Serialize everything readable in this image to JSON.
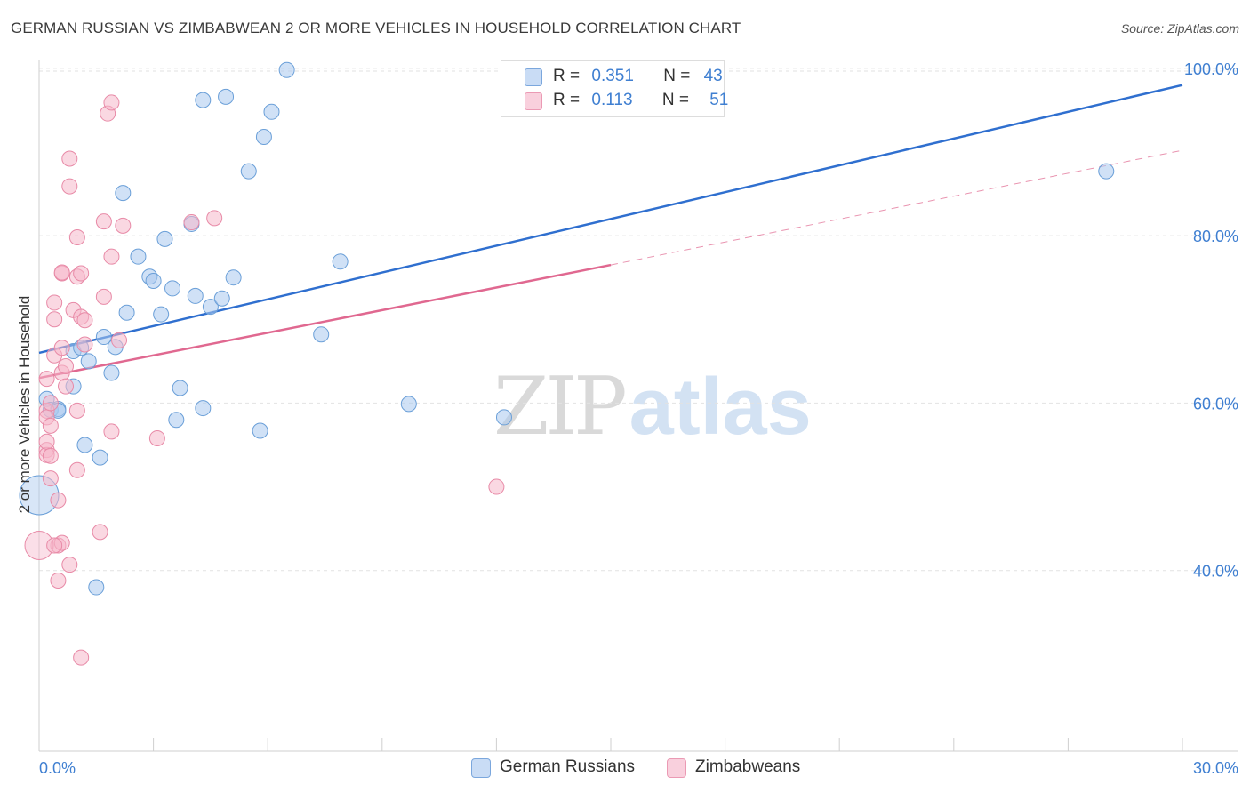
{
  "title": "GERMAN RUSSIAN VS ZIMBABWEAN 2 OR MORE VEHICLES IN HOUSEHOLD CORRELATION CHART",
  "source": "Source: ZipAtlas.com",
  "watermark": {
    "zip": "ZIP",
    "atlas": "atlas"
  },
  "legend": {
    "rows": [
      {
        "r_label": "R =",
        "r_value": "0.351",
        "n_label": "N =",
        "n_value": "43",
        "color": "#a9c8ee"
      },
      {
        "r_label": "R =",
        "r_value": "0.113",
        "n_label": "N =",
        "n_value": "51",
        "color": "#f6b8cb"
      }
    ]
  },
  "bottom_legend": [
    {
      "label": "German Russians",
      "color": "#a9c8ee"
    },
    {
      "label": "Zimbabweans",
      "color": "#f6b8cb"
    }
  ],
  "chart_data": {
    "type": "scatter",
    "xlabel": "",
    "ylabel": "2 or more Vehicles in Household",
    "xlim": [
      0,
      30
    ],
    "ylim": [
      20,
      102
    ],
    "x_tick_labels": [
      "0.0%",
      "30.0%"
    ],
    "y_ticks": [
      40,
      60,
      80,
      100
    ],
    "y_tick_labels": [
      "40.0%",
      "60.0%",
      "80.0%",
      "100.0%"
    ],
    "grid": true,
    "series": [
      {
        "name": "German Russians",
        "color": "#a9c8ee",
        "stroke": "#6a9fd8",
        "trend_color": "#2f6fcf",
        "trend": {
          "x0": 0,
          "y0": 66,
          "x1": 30,
          "y1": 98,
          "dashed_extension": false
        },
        "points": [
          [
            0.2,
            60.5
          ],
          [
            0.3,
            59.2
          ],
          [
            0.5,
            59.3
          ],
          [
            0.5,
            59.1
          ],
          [
            0.9,
            62
          ],
          [
            0.9,
            66.2
          ],
          [
            1.2,
            55
          ],
          [
            1.3,
            65
          ],
          [
            1.1,
            66.6
          ],
          [
            1.6,
            53.5
          ],
          [
            1.9,
            63.6
          ],
          [
            1.7,
            67.9
          ],
          [
            2.0,
            66.7
          ],
          [
            2.2,
            85.1
          ],
          [
            2.3,
            70.8
          ],
          [
            2.6,
            77.5
          ],
          [
            2.9,
            75.1
          ],
          [
            3.0,
            74.6
          ],
          [
            3.2,
            70.6
          ],
          [
            3.3,
            79.6
          ],
          [
            3.5,
            73.7
          ],
          [
            3.6,
            58
          ],
          [
            3.7,
            61.8
          ],
          [
            4.0,
            81.4
          ],
          [
            4.1,
            72.8
          ],
          [
            4.3,
            59.4
          ],
          [
            4.5,
            71.5
          ],
          [
            4.8,
            72.5
          ],
          [
            5.1,
            75
          ],
          [
            4.3,
            96.2
          ],
          [
            4.9,
            96.6
          ],
          [
            5.5,
            87.7
          ],
          [
            5.8,
            56.7
          ],
          [
            5.9,
            91.8
          ],
          [
            6.1,
            94.8
          ],
          [
            6.5,
            99.8
          ],
          [
            7.4,
            68.2
          ],
          [
            7.9,
            76.9
          ],
          [
            9.7,
            59.9
          ],
          [
            12.2,
            58.3
          ],
          [
            1.5,
            38
          ],
          [
            28.0,
            87.7
          ],
          [
            0.0,
            49.0
          ]
        ],
        "point_sizes": [
          1,
          1,
          1,
          1,
          1,
          1,
          1,
          1,
          1,
          1,
          1,
          1,
          1,
          1,
          1,
          1,
          1,
          1,
          1,
          1,
          1,
          1,
          1,
          1,
          1,
          1,
          1,
          1,
          1,
          1,
          1,
          1,
          1,
          1,
          1,
          1,
          1,
          1,
          1,
          1,
          1,
          1,
          3
        ]
      },
      {
        "name": "Zimbabweans",
        "color": "#f6b8cb",
        "stroke": "#e88aa7",
        "trend_color": "#e06890",
        "trend": {
          "x0": 0,
          "y0": 63,
          "x1": 15,
          "y1": 76.5,
          "dashed_extension": true,
          "dash_x1": 30,
          "dash_y1": 90.2
        },
        "points": [
          [
            0.2,
            62.9
          ],
          [
            0.2,
            59.1
          ],
          [
            0.2,
            58.3
          ],
          [
            0.2,
            54.4
          ],
          [
            0.2,
            53.8
          ],
          [
            0.2,
            55.4
          ],
          [
            0.3,
            53.7
          ],
          [
            0.3,
            57.3
          ],
          [
            0.3,
            51
          ],
          [
            0.4,
            65.7
          ],
          [
            0.4,
            72
          ],
          [
            0.4,
            70
          ],
          [
            0.5,
            38.8
          ],
          [
            0.5,
            48.4
          ],
          [
            0.5,
            43
          ],
          [
            0.6,
            75.5
          ],
          [
            0.6,
            66.6
          ],
          [
            0.6,
            63.6
          ],
          [
            0.6,
            43.3
          ],
          [
            0.7,
            64.4
          ],
          [
            0.7,
            62
          ],
          [
            0.8,
            40.7
          ],
          [
            0.8,
            89.2
          ],
          [
            0.8,
            85.9
          ],
          [
            0.9,
            71.1
          ],
          [
            1.0,
            79.8
          ],
          [
            1.0,
            75.1
          ],
          [
            1.0,
            52
          ],
          [
            1.0,
            59.1
          ],
          [
            1.1,
            75.5
          ],
          [
            1.1,
            70.3
          ],
          [
            1.1,
            29.6
          ],
          [
            1.2,
            69.9
          ],
          [
            1.2,
            67
          ],
          [
            1.6,
            44.6
          ],
          [
            1.7,
            72.7
          ],
          [
            1.7,
            81.7
          ],
          [
            1.8,
            94.6
          ],
          [
            1.9,
            95.9
          ],
          [
            1.9,
            77.5
          ],
          [
            1.9,
            56.6
          ],
          [
            2.1,
            67.5
          ],
          [
            2.2,
            81.2
          ],
          [
            3.1,
            55.8
          ],
          [
            4.0,
            81.6
          ],
          [
            4.6,
            82.1
          ],
          [
            12.0,
            50
          ],
          [
            0.6,
            75.6
          ],
          [
            0.3,
            60
          ],
          [
            0.0,
            43
          ],
          [
            0.4,
            43
          ]
        ],
        "point_sizes": [
          1,
          1,
          1,
          1,
          1,
          1,
          1,
          1,
          1,
          1,
          1,
          1,
          1,
          1,
          1,
          1,
          1,
          1,
          1,
          1,
          1,
          1,
          1,
          1,
          1,
          1,
          1,
          1,
          1,
          1,
          1,
          1,
          1,
          1,
          1,
          1,
          1,
          1,
          1,
          1,
          1,
          1,
          1,
          1,
          1,
          1,
          1,
          1,
          1,
          2,
          1
        ]
      }
    ]
  }
}
